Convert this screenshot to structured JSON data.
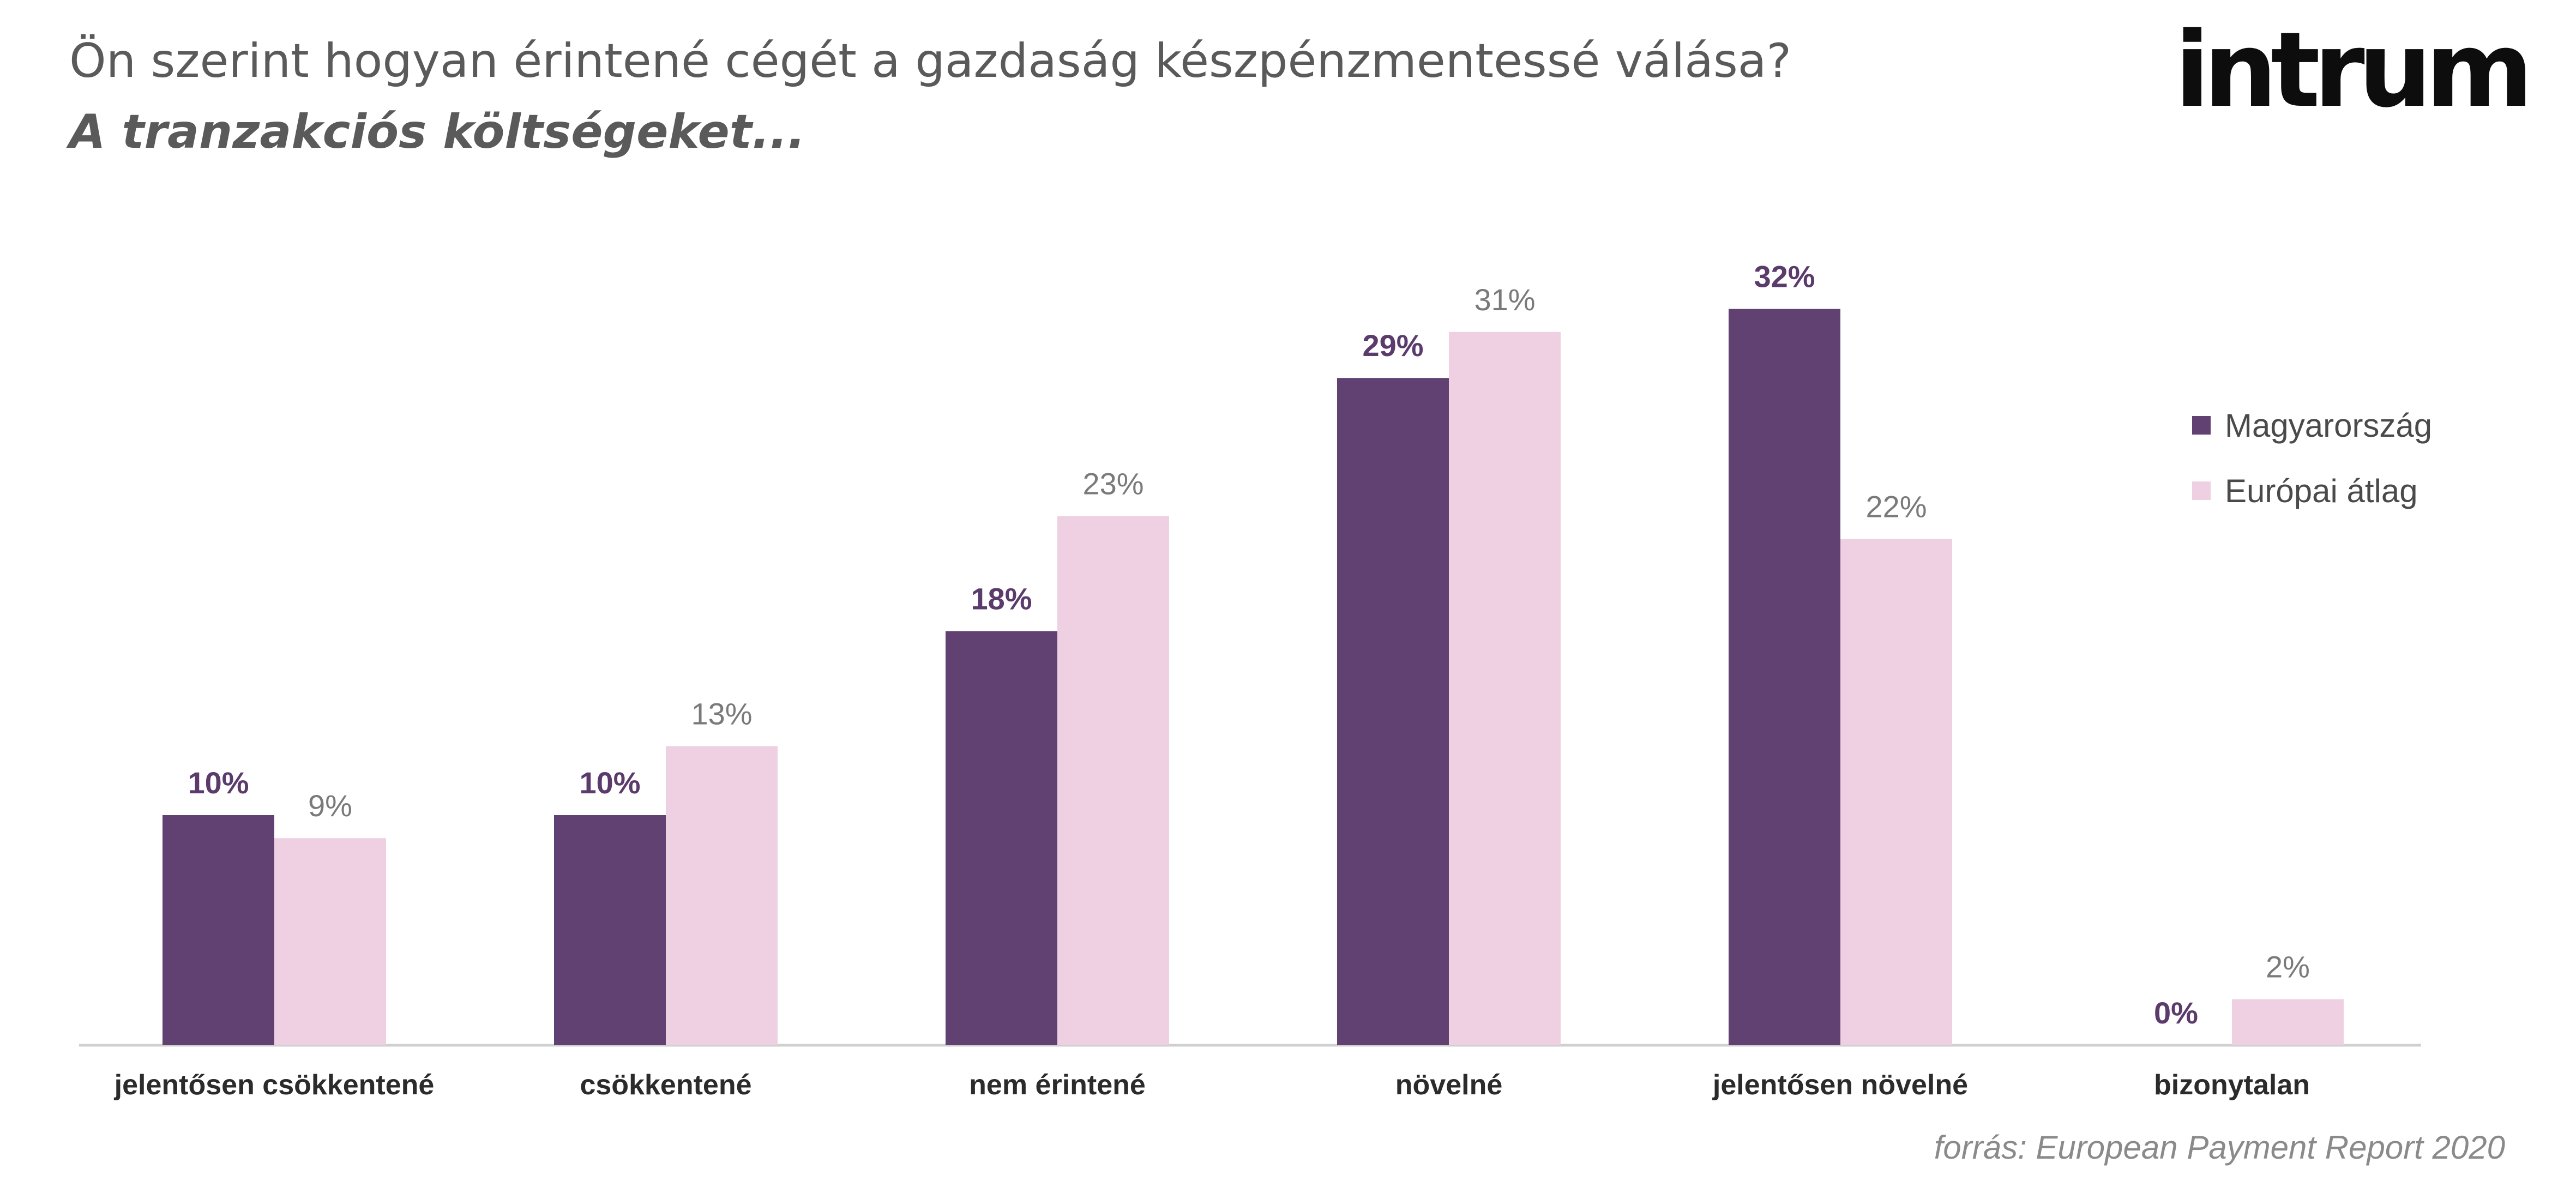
{
  "header": {
    "title": "Ön szerint hogyan érintené cégét a gazdaság készpénzmentessé válása?",
    "subtitle": "A tranzakciós költségeket...",
    "logo_text": "intrum"
  },
  "colors": {
    "hungary": "#614172",
    "europe": "#eed0e2",
    "hungary_label": "#5b3a6c",
    "europe_label": "#7a7a7a",
    "axis": "#d0d0d0",
    "category_label": "#2b2b2b"
  },
  "chart_data": {
    "type": "bar",
    "title": "Ön szerint hogyan érintené cégét a gazdaság készpénzmentessé válása?",
    "subtitle": "A tranzakciós költségeket...",
    "categories": [
      "jelentősen csökkentené",
      "csökkentené",
      "nem érintené",
      "növelné",
      "jelentősen növelné",
      "bizonytalan"
    ],
    "series": [
      {
        "name": "Magyarország",
        "values": [
          10,
          10,
          18,
          29,
          32,
          0
        ],
        "labels": [
          "10%",
          "10%",
          "18%",
          "29%",
          "32%",
          "0%"
        ]
      },
      {
        "name": "Európai átlag",
        "values": [
          9,
          13,
          23,
          31,
          22,
          2
        ],
        "labels": [
          "9%",
          "13%",
          "23%",
          "31%",
          "22%",
          "2%"
        ]
      }
    ],
    "xlabel": "",
    "ylabel": "",
    "ylim": [
      0,
      32
    ],
    "grid": false,
    "legend_position": "right"
  },
  "legend": {
    "items": [
      {
        "label": "Magyarország",
        "color": "#614172"
      },
      {
        "label": "Európai átlag",
        "color": "#eed0e2"
      }
    ]
  },
  "footer": {
    "source": "forrás: European Payment Report 2020"
  }
}
